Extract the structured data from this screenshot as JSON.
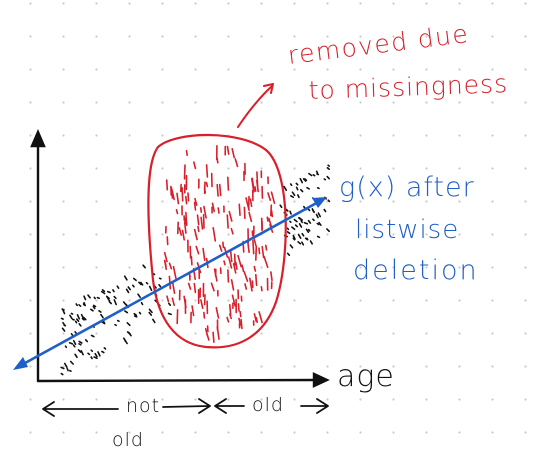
{
  "annotations": {
    "removed_line1": "removed due",
    "removed_line2": "to missingness",
    "fit_line1": "g(x) after",
    "fit_line2": "listwise",
    "fit_line3": "deletion"
  },
  "axes": {
    "x_label": "age",
    "range_left_line1": "not",
    "range_left_line2": "old",
    "range_right": "old"
  },
  "colors": {
    "axis": "#111111",
    "kept_points": "#111111",
    "removed_points": "#d81f2a",
    "removed_region": "#d81f2a",
    "fit_line": "#1f5fc8"
  }
}
